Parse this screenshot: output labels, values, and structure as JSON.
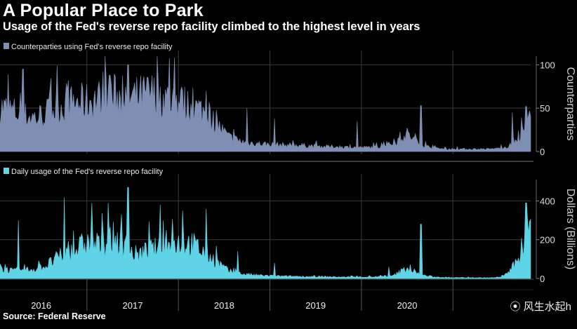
{
  "title": "A Popular Place to Park",
  "subtitle": "Usage of the Fed's reverse repo facility climbed to the highest level in years",
  "source": "Source: Federal Reserve",
  "watermark": "风生水起h",
  "colors": {
    "counterparties": "#7f8fb3",
    "usage": "#5fd4e6",
    "grid": "#3a3a3a",
    "divider": "#777"
  },
  "chart_data": [
    {
      "type": "area",
      "title": "",
      "legend": "Counterparties using Fed's reverse repo facility",
      "ylabel": "Counterparties",
      "ylim": [
        0,
        110
      ],
      "yticks": [
        "100",
        "50",
        "0"
      ],
      "ytick_values": [
        100,
        50,
        0
      ],
      "x_start": 2015.55,
      "x_end": 2021.35,
      "categories": [
        "2016",
        "2017",
        "2018",
        "2019",
        "2020"
      ],
      "x": [
        2015.55,
        2015.7,
        2015.8,
        2015.95,
        2016.05,
        2016.2,
        2016.35,
        2016.5,
        2016.65,
        2016.8,
        2016.95,
        2017.05,
        2017.2,
        2017.35,
        2017.5,
        2017.65,
        2017.8,
        2017.95,
        2018.05,
        2018.2,
        2018.35,
        2018.5,
        2018.65,
        2018.8,
        2018.95,
        2019.1,
        2019.25,
        2019.4,
        2019.55,
        2019.7,
        2019.85,
        2020.0,
        2020.15,
        2020.3,
        2020.45,
        2020.6,
        2020.75,
        2020.9,
        2021.0,
        2021.1,
        2021.2,
        2021.3,
        2021.35
      ],
      "values": [
        55,
        50,
        45,
        42,
        48,
        55,
        60,
        62,
        66,
        70,
        65,
        68,
        72,
        66,
        62,
        56,
        48,
        30,
        18,
        12,
        10,
        9,
        8,
        8,
        7,
        6,
        6,
        5,
        5,
        6,
        10,
        22,
        8,
        4,
        3,
        3,
        3,
        3,
        4,
        6,
        12,
        30,
        42
      ],
      "spikes": [
        [
          2015.8,
          95
        ],
        [
          2016.3,
          82
        ],
        [
          2016.5,
          78
        ],
        [
          2016.75,
          88
        ],
        [
          2016.95,
          100
        ],
        [
          2017.3,
          75
        ],
        [
          2017.55,
          70
        ],
        [
          2017.8,
          70
        ],
        [
          2018.25,
          50
        ],
        [
          2018.55,
          38
        ],
        [
          2019.45,
          35
        ],
        [
          2020.15,
          53
        ],
        [
          2021.15,
          45
        ],
        [
          2021.3,
          52
        ]
      ]
    },
    {
      "type": "area",
      "title": "",
      "legend": "Daily usage of the Fed's reverse repo facility",
      "ylabel": "Dollars (Billions)",
      "ylim": [
        0,
        510
      ],
      "yticks": [
        "400",
        "200",
        "0"
      ],
      "ytick_values": [
        400,
        200,
        0
      ],
      "x_start": 2015.55,
      "x_end": 2021.35,
      "categories": [
        "2016",
        "2017",
        "2018",
        "2019",
        "2020"
      ],
      "x": [
        2015.55,
        2015.7,
        2015.8,
        2015.95,
        2016.05,
        2016.2,
        2016.35,
        2016.5,
        2016.65,
        2016.8,
        2016.95,
        2017.05,
        2017.2,
        2017.35,
        2017.5,
        2017.65,
        2017.8,
        2017.95,
        2018.05,
        2018.2,
        2018.35,
        2018.5,
        2018.65,
        2018.8,
        2018.95,
        2019.1,
        2019.25,
        2019.4,
        2019.55,
        2019.7,
        2019.85,
        2020.0,
        2020.15,
        2020.3,
        2020.45,
        2020.6,
        2020.75,
        2020.9,
        2021.0,
        2021.1,
        2021.2,
        2021.3,
        2021.35
      ],
      "values": [
        60,
        40,
        45,
        55,
        70,
        120,
        150,
        200,
        180,
        230,
        150,
        130,
        160,
        170,
        200,
        190,
        140,
        80,
        40,
        25,
        18,
        15,
        12,
        12,
        10,
        10,
        8,
        8,
        8,
        10,
        15,
        60,
        20,
        8,
        5,
        5,
        4,
        4,
        5,
        30,
        90,
        200,
        300
      ],
      "spikes": [
        [
          2015.75,
          300
        ],
        [
          2016.25,
          420
        ],
        [
          2016.55,
          390
        ],
        [
          2016.95,
          470
        ],
        [
          2017.3,
          380
        ],
        [
          2017.55,
          350
        ],
        [
          2017.8,
          360
        ],
        [
          2018.15,
          140
        ],
        [
          2018.55,
          80
        ],
        [
          2019.8,
          60
        ],
        [
          2020.15,
          280
        ],
        [
          2021.3,
          390
        ]
      ]
    }
  ]
}
